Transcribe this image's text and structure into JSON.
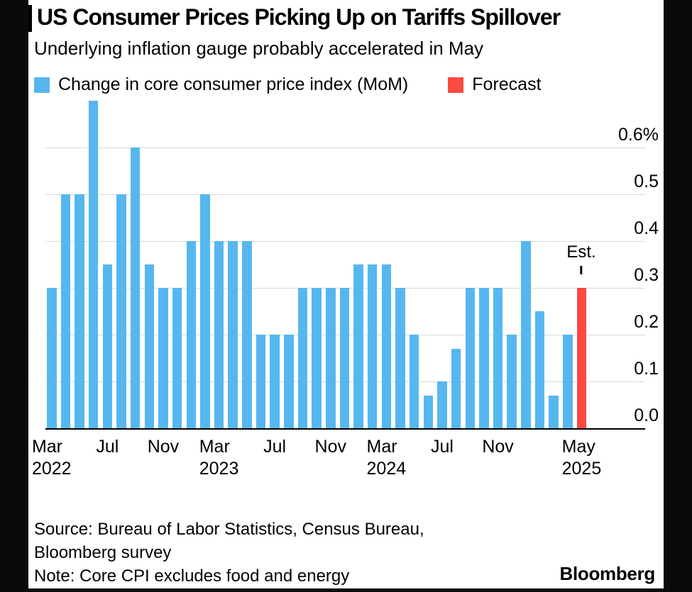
{
  "header": {
    "title": "US Consumer Prices Picking Up on Tariffs Spillover",
    "subtitle": "Underlying inflation gauge probably accelerated in May"
  },
  "legend": {
    "actual_label": "Change in core consumer price index (MoM)",
    "forecast_label": "Forecast"
  },
  "colors": {
    "actual": "#56b7ef",
    "forecast": "#fa4a42",
    "gridline": "#d9d9d9",
    "axis": "#000000",
    "card_background": "#ffffff",
    "page_background": "#0a0a0a"
  },
  "chart_data": {
    "type": "bar",
    "title": "US Consumer Prices Picking Up on Tariffs Spillover",
    "subtitle": "Underlying inflation gauge probably accelerated in May",
    "unit": "% MoM",
    "legend_position": "top",
    "months": [
      "Mar 2022",
      "Apr 2022",
      "May 2022",
      "Jun 2022",
      "Jul 2022",
      "Aug 2022",
      "Sep 2022",
      "Oct 2022",
      "Nov 2022",
      "Dec 2022",
      "Jan 2023",
      "Feb 2023",
      "Mar 2023",
      "Apr 2023",
      "May 2023",
      "Jun 2023",
      "Jul 2023",
      "Aug 2023",
      "Sep 2023",
      "Oct 2023",
      "Nov 2023",
      "Dec 2023",
      "Jan 2024",
      "Feb 2024",
      "Mar 2024",
      "Apr 2024",
      "May 2024",
      "Jun 2024",
      "Jul 2024",
      "Aug 2024",
      "Sep 2024",
      "Oct 2024",
      "Nov 2024",
      "Dec 2024",
      "Jan 2025",
      "Feb 2025",
      "Mar 2025",
      "Apr 2025",
      "May 2025"
    ],
    "values": [
      0.3,
      0.5,
      0.5,
      0.7,
      0.35,
      0.5,
      0.6,
      0.35,
      0.3,
      0.3,
      0.4,
      0.5,
      0.4,
      0.4,
      0.4,
      0.2,
      0.2,
      0.2,
      0.3,
      0.3,
      0.3,
      0.3,
      0.35,
      0.35,
      0.35,
      0.3,
      0.2,
      0.07,
      0.1,
      0.17,
      0.3,
      0.3,
      0.3,
      0.2,
      0.4,
      0.25,
      0.07,
      0.2,
      0.3
    ],
    "forecast_index": 38,
    "y_axis": {
      "tick_labels": [
        "0.0",
        "0.1",
        "0.2",
        "0.3",
        "0.4",
        "0.5",
        "0.6%"
      ],
      "range": [
        0,
        0.7
      ],
      "grid": true,
      "position": "right"
    },
    "x_axis": {
      "ticks": [
        {
          "i": 0,
          "month": "Mar",
          "year": "2022"
        },
        {
          "i": 4,
          "month": "Jul"
        },
        {
          "i": 8,
          "month": "Nov"
        },
        {
          "i": 12,
          "month": "Mar",
          "year": "2023"
        },
        {
          "i": 16,
          "month": "Jul"
        },
        {
          "i": 20,
          "month": "Nov"
        },
        {
          "i": 24,
          "month": "Mar",
          "year": "2024"
        },
        {
          "i": 28,
          "month": "Jul"
        },
        {
          "i": 32,
          "month": "Nov"
        },
        {
          "i": 38,
          "month": "May",
          "year": "2025"
        }
      ]
    },
    "annotation": {
      "label": "Est.",
      "applies_to": "May 2025"
    }
  },
  "footer": {
    "source_line1": "Source: Bureau of Labor Statistics, Census Bureau,",
    "source_line2": "Bloomberg survey",
    "note_line": "Note: Core CPI excludes food and energy",
    "brand": "Bloomberg"
  }
}
